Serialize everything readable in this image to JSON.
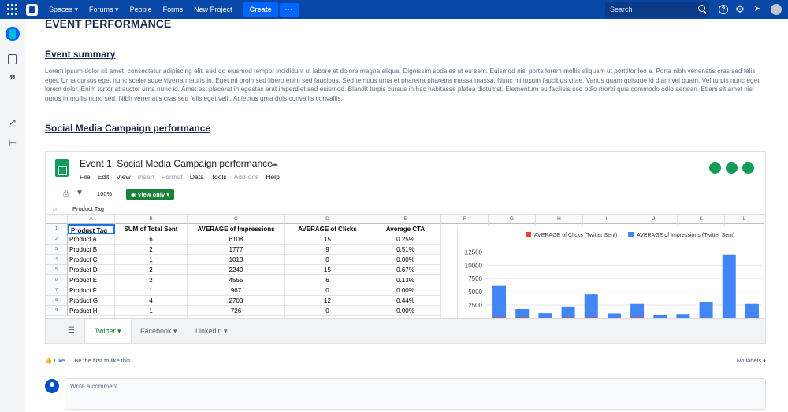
{
  "nav": {
    "spaces": "Spaces ▾",
    "forums": "Forums ▾",
    "people": "People",
    "forms": "Forms",
    "new_project": "New Project",
    "create": "Create",
    "more": "···",
    "search_placeholder": "Search"
  },
  "page": {
    "title": "EVENT PERFORMANCE",
    "section1": "Event summary",
    "summary": "Lorem ipsum dolor sit amet, consectetur adipiscing elit, sed do eiusmod tempor incididunt ut labore et dolore magna aliqua. Dignissim sodales ut eu sem. Euismod nisi porta lorem mollis aliquam ut porttitor leo a. Porta nibh venenatis cras sed felis eget. Urna cursus eget nunc scelerisque viverra mauris in. Eget mi proin sed libero enim sed faucibus. Sed tempus urna et pharetra pharetra massa massa. Nunc mi ipsum faucibus vitae. Varius quam quisque id diam vel quam. Vel turpis nunc eget lorem dolor. Enim tortor at auctor urna nunc id. Amet est placerat in egestas erat imperdiet sed euismod. Blandit turpis cursus in hac habitasse platea dictumst. Elementum eu facilisis sed odio morbi quis commodo odio aenean. Etiam sit amet nisl purus in mollis nunc sed. Nibh venenatis cras sed felis eget velit. At lectus urna duis convallis convallis.",
    "section2": "Social Media Campaign performance"
  },
  "sheet": {
    "title": "Event 1: Social Media Campaign performance",
    "menu": [
      "File",
      "Edit",
      "View",
      "Insert",
      "Format",
      "Data",
      "Tools",
      "Add-ons",
      "Help"
    ],
    "zoom": "100%",
    "view_only": "View only",
    "fx": "fx",
    "formula": "Product Tag",
    "columns": [
      "A",
      "B",
      "C",
      "D",
      "E",
      "F",
      "G",
      "H",
      "I",
      "J",
      "K",
      "L"
    ],
    "headers": [
      "Product Tag",
      "SUM of Total Sent",
      "AVERAGE of Impressions",
      "AVERAGE of Clicks",
      "Average CTA"
    ],
    "rows": [
      [
        "Product A",
        "6",
        "6108",
        "15",
        "0.25%"
      ],
      [
        "Product B",
        "2",
        "1777",
        "9",
        "0.51%"
      ],
      [
        "Product C",
        "1",
        "1013",
        "0",
        "0.00%"
      ],
      [
        "Product D",
        "2",
        "2240",
        "15",
        "0.67%"
      ],
      [
        "Product E",
        "2",
        "4555",
        "6",
        "0.13%"
      ],
      [
        "Product F",
        "1",
        "967",
        "0",
        "0.00%"
      ],
      [
        "Product G",
        "4",
        "2703",
        "12",
        "0.44%"
      ],
      [
        "Product H",
        "1",
        "726",
        "0",
        "0.00%"
      ]
    ],
    "row_numbers": [
      "1",
      "2",
      "3",
      "4",
      "5",
      "6",
      "7",
      "8",
      "9"
    ],
    "tabs": [
      "Twitter ▾",
      "Facebook ▾",
      "Linkedin ▾"
    ]
  },
  "chart_data": {
    "type": "bar",
    "series": [
      {
        "name": "AVERAGE of Clicks (Twitter Sent)",
        "color": "#ea4335",
        "values": [
          15,
          9,
          0,
          15,
          6,
          0,
          12,
          0,
          0,
          0,
          0,
          0
        ]
      },
      {
        "name": "AVERAGE of Impressions (Twitter Sent)",
        "color": "#4285f4",
        "values": [
          6108,
          1777,
          1013,
          2240,
          4555,
          967,
          2703,
          726,
          850,
          3100,
          12000,
          2700
        ]
      }
    ],
    "yticks": [
      "12500",
      "10000",
      "7500",
      "5000",
      "2500"
    ],
    "ylim": [
      0,
      13000
    ]
  },
  "footer": {
    "like": "Like",
    "first_like": "Be the first to like this",
    "no_labels": "No labels",
    "comment_placeholder": "Write a comment..."
  }
}
